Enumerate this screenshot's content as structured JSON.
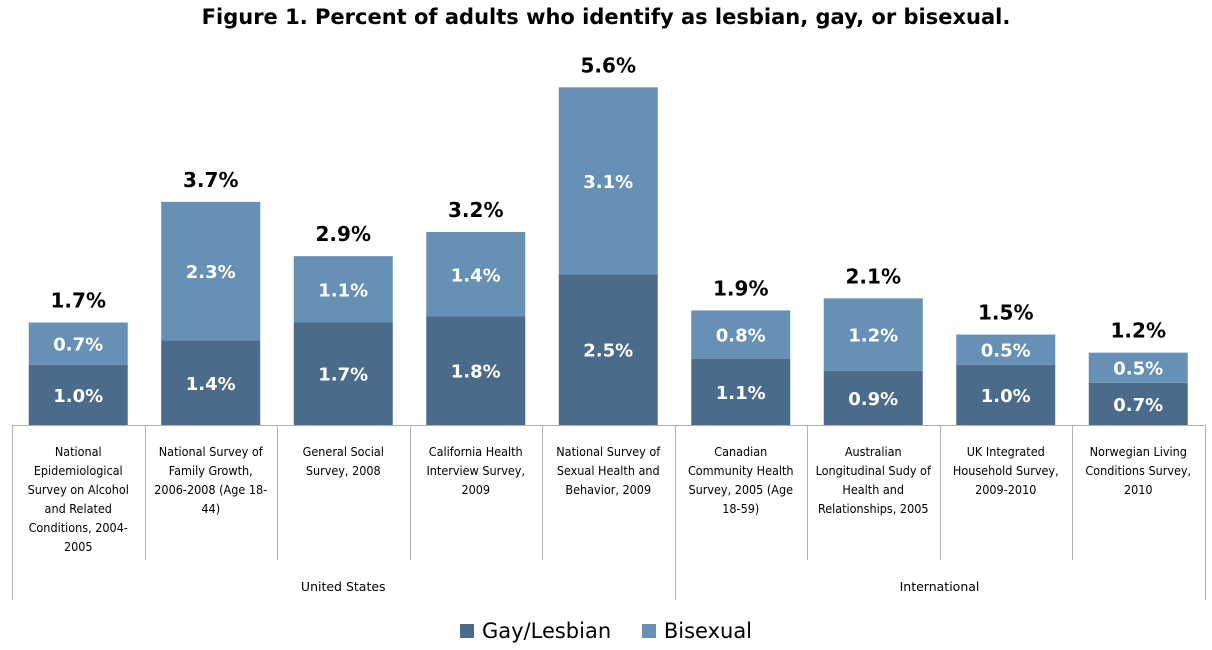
{
  "chart_data": {
    "type": "bar",
    "stacked": true,
    "title": "Figure 1. Percent of adults who identify as lesbian, gay, or bisexual.",
    "categories": [
      "National Epidemiological Survey on Alcohol and Related Conditions, 2004-2005",
      "National Survey of Family Growth, 2006-2008 (Age 18-44)",
      "General Social Survey, 2008",
      "California Health Interview Survey, 2009",
      "National Survey of Sexual Health and Behavior, 2009",
      "Canadian Community Health Survey, 2005 (Age 18-59)",
      "Australian Longitudinal Sudy of Health and Relationships, 2005",
      "UK Integrated Household Survey, 2009-2010",
      "Norwegian Living Conditions Survey, 2010"
    ],
    "category_lines": [
      [
        "National",
        "Epidemiological",
        "Survey on Alcohol",
        "and Related",
        "Conditions, 2004-",
        "2005"
      ],
      [
        "National Survey of",
        "Family Growth,",
        "2006-2008 (Age 18-",
        "44)"
      ],
      [
        "General Social",
        "Survey, 2008"
      ],
      [
        "California Health",
        "Interview Survey,",
        "2009"
      ],
      [
        "National Survey of",
        "Sexual Health and",
        "Behavior, 2009"
      ],
      [
        "Canadian",
        "Community Health",
        "Survey, 2005 (Age",
        "18-59)"
      ],
      [
        "Australian",
        "Longitudinal Sudy of",
        "Health and",
        "Relationships, 2005"
      ],
      [
        "UK Integrated",
        "Household Survey,",
        "2009-2010"
      ],
      [
        "Norwegian Living",
        "Conditions Survey,",
        "2010"
      ]
    ],
    "groups": [
      {
        "label": "United States",
        "categories": 5
      },
      {
        "label": "International",
        "categories": 4
      }
    ],
    "series": [
      {
        "name": "Gay/Lesbian",
        "color": "#4a6b8a",
        "values": [
          1.0,
          1.4,
          1.7,
          1.8,
          2.5,
          1.1,
          0.9,
          1.0,
          0.7
        ],
        "labels": [
          "1.0%",
          "1.4%",
          "1.7%",
          "1.8%",
          "2.5%",
          "1.1%",
          "0.9%",
          "1.0%",
          "0.7%"
        ]
      },
      {
        "name": "Bisexual",
        "color": "#6690b4",
        "values": [
          0.7,
          2.3,
          1.1,
          1.4,
          3.1,
          0.8,
          1.2,
          0.5,
          0.5
        ],
        "labels": [
          "0.7%",
          "2.3%",
          "1.1%",
          "1.4%",
          "3.1%",
          "0.8%",
          "1.2%",
          "0.5%",
          "0.5%"
        ]
      }
    ],
    "totals": [
      1.7,
      3.7,
      2.9,
      3.2,
      5.6,
      1.9,
      2.1,
      1.5,
      1.2
    ],
    "total_labels": [
      "1.7%",
      "3.7%",
      "2.9%",
      "3.2%",
      "5.6%",
      "1.9%",
      "2.1%",
      "1.5%",
      "1.2%"
    ],
    "ylim": [
      0,
      5.6
    ],
    "grid": false,
    "legend_position": "bottom"
  }
}
